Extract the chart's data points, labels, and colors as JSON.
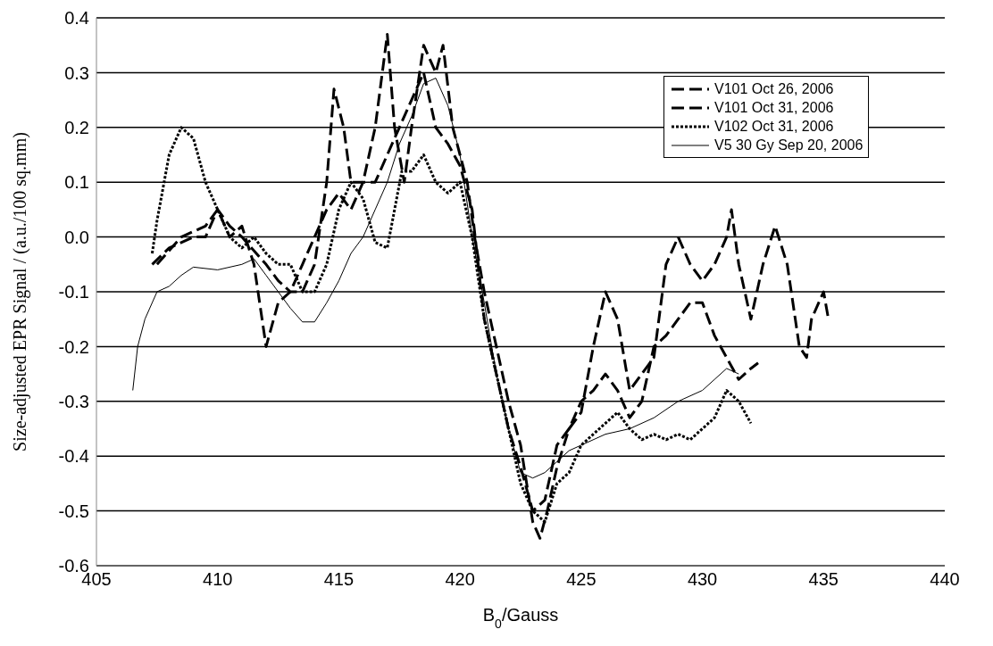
{
  "chart_data": {
    "type": "line",
    "xlabel": "B$_{0}$/Gauss",
    "ylabel": "Size-adjusted EPR Signal / (a.u./100 sq.mm)",
    "xlim": [
      405,
      440
    ],
    "xticks": [
      405,
      410,
      415,
      420,
      425,
      430,
      435,
      440
    ],
    "ylim": [
      -0.6,
      0.4
    ],
    "yticks": [
      -0.6,
      -0.5,
      -0.4,
      -0.3,
      -0.2,
      -0.1,
      {
        "value": 0,
        "label": "0.0"
      },
      0.1,
      0.2,
      0.3,
      0.4
    ],
    "grid": "y",
    "legend": "top right",
    "marker": "none",
    "series": [
      {
        "name": "V101 Oct 26, 2006",
        "color": "#000000",
        "line_style": "dashed",
        "x": [
          407.5,
          408.5,
          409.5,
          410,
          410.5,
          411,
          411.5,
          412,
          412.5,
          413,
          413.5,
          414,
          414.5,
          415,
          415.5,
          416,
          416.5,
          417,
          417.3,
          417.7,
          418,
          418.5,
          419,
          419.3,
          419.7,
          420,
          420.3,
          420.6,
          421,
          421.5,
          422,
          422.5,
          423,
          423.3,
          423.6,
          424,
          424.5,
          425,
          425.5,
          426,
          426.5,
          427,
          427.5,
          428,
          428.5,
          429,
          429.5,
          430,
          430.5,
          431,
          431.2,
          431.5,
          432,
          432.5,
          433,
          433.5,
          434,
          434.3,
          434.5,
          435,
          435.2
        ],
        "values": [
          -0.05,
          0.0,
          0.02,
          0.05,
          0.0,
          0.02,
          -0.05,
          -0.2,
          -0.12,
          -0.1,
          -0.05,
          0.0,
          0.05,
          0.08,
          0.05,
          0.1,
          0.2,
          0.37,
          0.2,
          0.1,
          0.2,
          0.35,
          0.3,
          0.35,
          0.2,
          0.15,
          0.1,
          0.0,
          -0.1,
          -0.2,
          -0.3,
          -0.38,
          -0.52,
          -0.55,
          -0.5,
          -0.42,
          -0.35,
          -0.32,
          -0.2,
          -0.1,
          -0.15,
          -0.28,
          -0.25,
          -0.22,
          -0.05,
          0.0,
          -0.05,
          -0.08,
          -0.05,
          0.0,
          0.05,
          -0.05,
          -0.15,
          -0.05,
          0.02,
          -0.05,
          -0.2,
          -0.22,
          -0.15,
          -0.1,
          -0.15
        ]
      },
      {
        "name": "V101 Oct 31, 2006",
        "color": "#000000",
        "line_style": "dashed",
        "x": [
          407.3,
          408,
          409,
          409.5,
          410,
          410.5,
          411,
          412,
          412.5,
          413,
          413.5,
          414,
          414.5,
          414.8,
          415.2,
          415.5,
          416,
          416.5,
          417,
          417.5,
          418,
          418.5,
          419,
          419.5,
          420,
          420.5,
          421,
          421.5,
          422,
          422.5,
          423,
          423.5,
          424,
          424.5,
          425,
          425.5,
          426,
          426.5,
          427,
          427.5,
          428,
          428.5,
          429,
          429.5,
          430,
          430.5,
          431,
          431.5,
          432,
          432.3
        ],
        "values": [
          -0.05,
          -0.02,
          0.0,
          0.0,
          0.05,
          0.02,
          0.0,
          -0.05,
          -0.08,
          -0.1,
          -0.1,
          -0.05,
          0.1,
          0.27,
          0.2,
          0.1,
          0.1,
          0.1,
          0.15,
          0.2,
          0.25,
          0.3,
          0.2,
          0.17,
          0.13,
          0.05,
          -0.15,
          -0.25,
          -0.35,
          -0.42,
          -0.5,
          -0.48,
          -0.38,
          -0.35,
          -0.3,
          -0.28,
          -0.25,
          -0.28,
          -0.33,
          -0.3,
          -0.2,
          -0.18,
          -0.15,
          -0.12,
          -0.12,
          -0.18,
          -0.22,
          -0.26,
          -0.24,
          -0.23
        ]
      },
      {
        "name": "V102 Oct 31, 2006",
        "color": "#000000",
        "line_style": "dotted",
        "x": [
          407.3,
          407.5,
          408,
          408.5,
          409,
          409.5,
          410,
          410.5,
          411,
          411.5,
          412,
          412.5,
          413,
          413.5,
          414,
          414.5,
          415,
          415.5,
          416,
          416.5,
          417,
          417.3,
          417.6,
          418,
          418.5,
          419,
          419.5,
          420,
          420.5,
          421,
          421.5,
          422,
          422.5,
          423,
          423.5,
          424,
          424.5,
          425,
          425.5,
          426,
          426.5,
          427,
          427.5,
          428,
          428.5,
          429,
          429.5,
          430,
          430.5,
          431,
          431.5,
          432
        ],
        "values": [
          -0.03,
          0.03,
          0.15,
          0.2,
          0.18,
          0.1,
          0.05,
          0.0,
          -0.02,
          0.0,
          -0.03,
          -0.05,
          -0.05,
          -0.1,
          -0.1,
          -0.05,
          0.05,
          0.1,
          0.07,
          -0.01,
          -0.02,
          0.05,
          0.12,
          0.12,
          0.15,
          0.1,
          0.08,
          0.1,
          0.0,
          -0.15,
          -0.25,
          -0.35,
          -0.45,
          -0.5,
          -0.52,
          -0.45,
          -0.43,
          -0.38,
          -0.36,
          -0.34,
          -0.32,
          -0.35,
          -0.37,
          -0.36,
          -0.37,
          -0.36,
          -0.37,
          -0.35,
          -0.33,
          -0.28,
          -0.3,
          -0.34
        ]
      },
      {
        "name": "V5 30 Gy Sep 20, 2006",
        "color": "#000000",
        "line_style": "solid",
        "x": [
          406.5,
          406.7,
          407,
          407.5,
          408,
          408.5,
          409,
          410,
          411,
          411.5,
          412,
          412.5,
          413,
          413.5,
          414,
          414.5,
          415,
          415.5,
          416,
          416.5,
          417,
          417.5,
          418,
          418.5,
          419,
          419.5,
          420,
          420.5,
          421,
          421.5,
          422,
          422.5,
          423,
          423.5,
          424,
          424.5,
          425,
          426,
          427,
          428,
          429,
          430,
          430.5,
          431,
          431.5
        ],
        "values": [
          -0.28,
          -0.2,
          -0.15,
          -0.1,
          -0.09,
          -0.07,
          -0.055,
          -0.06,
          -0.05,
          -0.04,
          -0.07,
          -0.1,
          -0.13,
          -0.155,
          -0.155,
          -0.12,
          -0.08,
          -0.03,
          0.0,
          0.05,
          0.1,
          0.17,
          0.22,
          0.28,
          0.29,
          0.24,
          0.15,
          0.0,
          -0.12,
          -0.25,
          -0.35,
          -0.43,
          -0.44,
          -0.43,
          -0.41,
          -0.39,
          -0.38,
          -0.36,
          -0.35,
          -0.33,
          -0.3,
          -0.28,
          -0.26,
          -0.24,
          -0.25
        ]
      }
    ]
  }
}
